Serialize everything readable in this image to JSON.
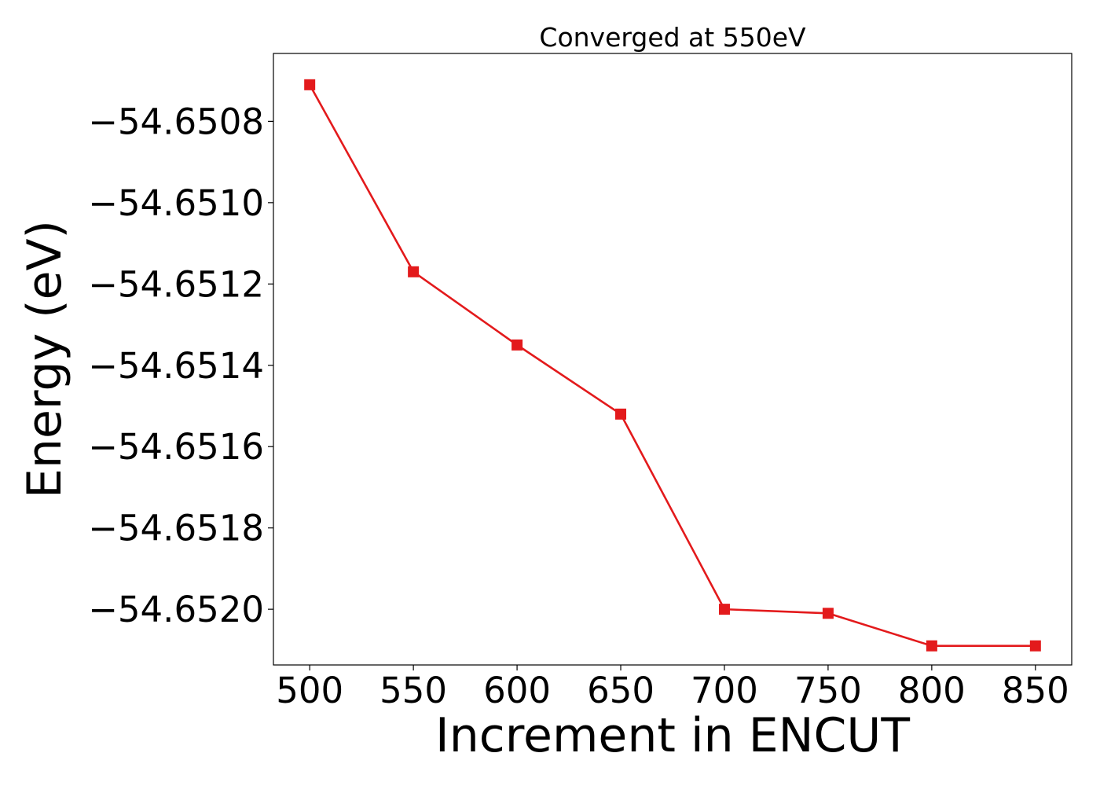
{
  "chart_data": {
    "type": "line",
    "title": "Converged at 550eV",
    "xlabel": "Increment in ENCUT",
    "ylabel": "Energy (eV)",
    "x": [
      500,
      550,
      600,
      650,
      700,
      750,
      800,
      850
    ],
    "series": [
      {
        "values": [
          -54.65071,
          -54.65117,
          -54.65135,
          -54.65152,
          -54.652,
          -54.65201,
          -54.65209,
          -54.65209
        ],
        "color": "#e31a1c",
        "marker": "square"
      }
    ],
    "x_ticks": [
      500,
      550,
      600,
      650,
      700,
      750,
      800,
      850
    ],
    "x_tick_labels": [
      "500",
      "550",
      "600",
      "650",
      "700",
      "750",
      "800",
      "850"
    ],
    "y_ticks": [
      -54.6508,
      -54.651,
      -54.6512,
      -54.6514,
      -54.6516,
      -54.6518,
      -54.652
    ],
    "y_tick_labels": [
      "−54.6508",
      "−54.6510",
      "−54.6512",
      "−54.6514",
      "−54.6516",
      "−54.6518",
      "−54.6520"
    ],
    "xlim": [
      482.5,
      867.5
    ],
    "ylim": [
      -54.652137,
      -54.650633
    ],
    "grid": false,
    "legend": "none"
  }
}
